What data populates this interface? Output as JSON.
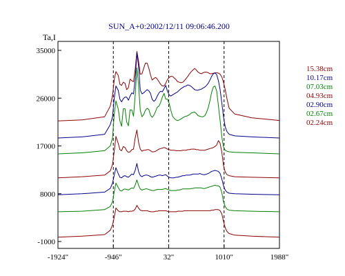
{
  "chart_data": {
    "type": "line",
    "title": "SUN_A+0:2002/12/11 09:06:46.200",
    "ylabel": "Ta,I",
    "xlim": [
      -1924,
      1988
    ],
    "ylim": [
      -1000,
      35000
    ],
    "x_ticks": [
      -1924,
      -946,
      32,
      1010,
      1988
    ],
    "x_tick_labels": [
      "-1924\"",
      "-946\"",
      "32\"",
      "1010\"",
      "1988\""
    ],
    "y_ticks": [
      -1000,
      8000,
      17000,
      26000,
      35000
    ],
    "y_tick_labels": [
      "-1000",
      "8000",
      "17000",
      "26000",
      "35000"
    ],
    "reference_lines_x": [
      -946,
      32,
      1010
    ],
    "x": [
      -1924,
      -1500,
      -1100,
      -1000,
      -960,
      -930,
      -900,
      -860,
      -830,
      -800,
      -770,
      -740,
      -710,
      -680,
      -650,
      -620,
      -590,
      -560,
      -530,
      -500,
      -470,
      -440,
      -410,
      -380,
      -350,
      -320,
      -290,
      -260,
      -230,
      -200,
      -170,
      -140,
      -110,
      -80,
      -50,
      -20,
      10,
      40,
      70,
      100,
      130,
      160,
      190,
      220,
      250,
      280,
      310,
      340,
      370,
      400,
      430,
      460,
      490,
      520,
      550,
      580,
      610,
      640,
      670,
      700,
      730,
      760,
      790,
      820,
      850,
      880,
      910,
      940,
      970,
      1000,
      1030,
      1060,
      1100,
      1200,
      1500,
      1988
    ],
    "series": [
      {
        "name": "15.38cm",
        "color": "#8b0000",
        "values": [
          21700,
          21900,
          22500,
          24500,
          26500,
          29500,
          31000,
          30300,
          28600,
          28400,
          29000,
          28800,
          27600,
          28000,
          29600,
          29300,
          29100,
          31400,
          34800,
          33000,
          30500,
          30600,
          31600,
          32600,
          32600,
          31700,
          30400,
          29400,
          29700,
          29900,
          29600,
          29100,
          28600,
          28300,
          28300,
          28800,
          29500,
          29900,
          30100,
          30100,
          29800,
          29500,
          29100,
          29000,
          28900,
          29000,
          29300,
          29700,
          30100,
          30600,
          31000,
          31300,
          31600,
          31300,
          30900,
          30700,
          30600,
          30800,
          30900,
          30900,
          30800,
          30600,
          30600,
          30700,
          30700,
          30800,
          30700,
          30500,
          30000,
          29000,
          27600,
          25900,
          24100,
          23000,
          22300,
          21800
        ]
      },
      {
        "name": "10.17cm",
        "color": "#00008b",
        "values": [
          18500,
          18700,
          19200,
          21000,
          22500,
          26000,
          28300,
          27500,
          25800,
          25300,
          25900,
          26200,
          26200,
          25600,
          26400,
          27000,
          26800,
          29600,
          34500,
          32000,
          27500,
          26800,
          27000,
          27300,
          27600,
          27400,
          26900,
          25800,
          25400,
          25700,
          26400,
          27000,
          27300,
          27200,
          27800,
          28400,
          27300,
          26600,
          26400,
          26600,
          26800,
          27000,
          27200,
          27500,
          27800,
          28000,
          28200,
          28300,
          28500,
          28400,
          28200,
          27900,
          27600,
          27500,
          27500,
          27600,
          27700,
          27900,
          28100,
          28400,
          28800,
          29400,
          30100,
          30600,
          30800,
          30400,
          29300,
          27600,
          25100,
          22500,
          20600,
          19700,
          19200,
          18900,
          18700,
          18500
        ]
      },
      {
        "name": "07.03cm",
        "color": "#008000",
        "values": [
          15500,
          15700,
          16100,
          17000,
          18500,
          23000,
          25500,
          24000,
          21700,
          20700,
          24000,
          24000,
          21500,
          20800,
          23800,
          23800,
          22600,
          26500,
          31700,
          28500,
          23700,
          22500,
          22900,
          23700,
          24100,
          23900,
          22800,
          22400,
          22800,
          23500,
          24300,
          24500,
          25200,
          26200,
          26900,
          25800,
          25800,
          25000,
          23700,
          22600,
          22200,
          21900,
          21800,
          21900,
          22100,
          22300,
          22500,
          22600,
          22700,
          22900,
          23200,
          23300,
          23400,
          23100,
          22700,
          22600,
          22500,
          22500,
          22700,
          23300,
          24200,
          25500,
          27100,
          28100,
          28300,
          27300,
          24600,
          21800,
          18700,
          16800,
          16200,
          16000,
          15900,
          15800,
          15700,
          15500
        ]
      },
      {
        "name": "04.93cm",
        "color": "#8b0000",
        "values": [
          11000,
          11200,
          11500,
          12300,
          13500,
          16000,
          18800,
          17500,
          16300,
          16100,
          16900,
          16700,
          16100,
          15800,
          15900,
          16300,
          16400,
          18500,
          20000,
          17700,
          16400,
          16000,
          16200,
          16200,
          16300,
          16300,
          16100,
          15900,
          15900,
          16000,
          16200,
          16400,
          16500,
          16600,
          16700,
          16600,
          16400,
          16300,
          16200,
          16200,
          16200,
          16100,
          16100,
          16100,
          16100,
          16200,
          16200,
          16200,
          16300,
          16300,
          16400,
          16400,
          16400,
          16300,
          16300,
          16200,
          16200,
          16200,
          16200,
          16300,
          16400,
          16500,
          16600,
          16700,
          16900,
          17200,
          18000,
          17500,
          15800,
          13300,
          12100,
          11600,
          11400,
          11200,
          11100,
          11000
        ]
      },
      {
        "name": "02.90cm",
        "color": "#00008b",
        "values": [
          7800,
          8000,
          8300,
          9000,
          10000,
          11500,
          12900,
          11800,
          11100,
          11000,
          11300,
          11400,
          11200,
          11100,
          11400,
          11700,
          11600,
          12400,
          13700,
          12200,
          11400,
          11200,
          11400,
          11500,
          11500,
          11400,
          11200,
          11100,
          11200,
          11300,
          11400,
          11500,
          11500,
          11400,
          11500,
          11600,
          11300,
          11100,
          11000,
          11000,
          11000,
          11100,
          11100,
          11200,
          11300,
          11400,
          11400,
          11500,
          11500,
          11500,
          11600,
          11700,
          11700,
          11700,
          11700,
          11800,
          11700,
          11600,
          11600,
          11700,
          11800,
          12000,
          12200,
          12300,
          12400,
          12300,
          12200,
          11800,
          10800,
          9500,
          8700,
          8300,
          8100,
          8000,
          7900,
          7800
        ]
      },
      {
        "name": "02.67cm",
        "color": "#008000",
        "values": [
          4600,
          4700,
          5000,
          5600,
          6500,
          8400,
          10000,
          9200,
          8600,
          8500,
          8800,
          8900,
          8800,
          8700,
          8900,
          9100,
          9000,
          9600,
          10600,
          9600,
          8900,
          8700,
          8800,
          8900,
          8900,
          8800,
          8700,
          8600,
          8600,
          8700,
          8800,
          8800,
          8800,
          8800,
          8900,
          9000,
          8800,
          8700,
          8600,
          8600,
          8600,
          8600,
          8700,
          8700,
          8800,
          8900,
          8900,
          8900,
          8900,
          8900,
          9000,
          9000,
          9100,
          9100,
          9100,
          9100,
          9100,
          9000,
          9000,
          9100,
          9200,
          9300,
          9400,
          9500,
          9600,
          9500,
          9500,
          9200,
          8200,
          6500,
          5600,
          5100,
          4900,
          4800,
          4700,
          4600
        ]
      },
      {
        "name": "02.24cm",
        "color": "#8b0000",
        "values": [
          -200,
          0,
          300,
          1100,
          2100,
          3600,
          5300,
          4800,
          4600,
          4600,
          4700,
          4700,
          4700,
          4600,
          4700,
          4700,
          4800,
          5100,
          5800,
          5300,
          4900,
          4800,
          4800,
          4800,
          4800,
          4700,
          4600,
          4600,
          4600,
          4700,
          4700,
          4800,
          4800,
          4800,
          4800,
          4800,
          4700,
          4600,
          4600,
          4600,
          4600,
          4600,
          4700,
          4700,
          4700,
          4700,
          4800,
          4800,
          4800,
          4800,
          4800,
          4800,
          4800,
          4800,
          4800,
          4800,
          4800,
          4800,
          4800,
          4800,
          4800,
          4800,
          4900,
          4900,
          5000,
          5000,
          5000,
          4800,
          4200,
          2800,
          1600,
          900,
          500,
          200,
          0,
          -200
        ]
      }
    ]
  }
}
